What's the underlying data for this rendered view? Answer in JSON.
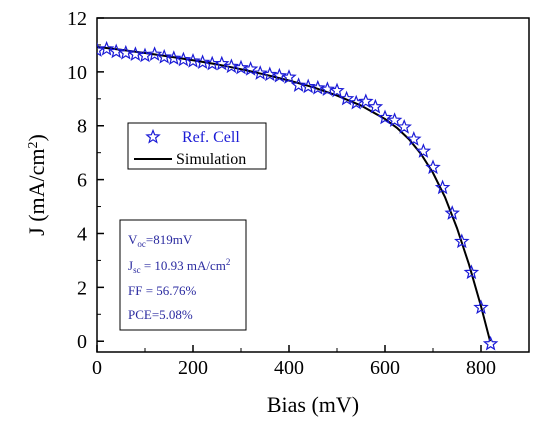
{
  "chart_data": {
    "type": "line",
    "xlabel": "Bias (mV)",
    "ylabel": "J (mA/cm",
    "ylabel_sup": "2",
    "ylabel_tail": ")",
    "xlim": [
      0,
      900
    ],
    "ylim": [
      -0.4,
      12
    ],
    "x_ticks": [
      0,
      200,
      400,
      600,
      800
    ],
    "y_ticks": [
      0,
      2,
      4,
      6,
      8,
      10,
      12
    ],
    "grid": false,
    "legend_position": "left-middle",
    "series": [
      {
        "name": "Ref. Cell",
        "kind": "markers",
        "marker": "star",
        "color": "#1a1ad6",
        "x": [
          0,
          20,
          40,
          60,
          80,
          100,
          120,
          140,
          160,
          180,
          200,
          220,
          240,
          260,
          280,
          300,
          320,
          340,
          360,
          380,
          400,
          420,
          440,
          460,
          480,
          500,
          520,
          540,
          560,
          580,
          600,
          620,
          640,
          660,
          680,
          700,
          720,
          740,
          760,
          780,
          800,
          820
        ],
        "y": [
          10.8,
          10.85,
          10.75,
          10.7,
          10.65,
          10.6,
          10.65,
          10.55,
          10.5,
          10.45,
          10.4,
          10.35,
          10.3,
          10.3,
          10.2,
          10.15,
          10.1,
          9.95,
          9.9,
          9.85,
          9.8,
          9.5,
          9.45,
          9.4,
          9.35,
          9.3,
          9.0,
          8.85,
          8.9,
          8.7,
          8.3,
          8.2,
          7.95,
          7.5,
          7.05,
          6.45,
          5.7,
          4.75,
          3.7,
          2.55,
          1.25,
          -0.1
        ]
      },
      {
        "name": "Simulation",
        "kind": "line",
        "color": "#000000",
        "x": [
          0,
          50,
          100,
          150,
          200,
          250,
          300,
          350,
          400,
          450,
          500,
          550,
          600,
          625,
          650,
          675,
          700,
          725,
          750,
          775,
          800,
          819
        ],
        "y": [
          10.93,
          10.82,
          10.7,
          10.57,
          10.43,
          10.28,
          10.1,
          9.9,
          9.68,
          9.43,
          9.12,
          8.75,
          8.25,
          7.92,
          7.5,
          6.95,
          6.25,
          5.35,
          4.2,
          2.85,
          1.3,
          0.0
        ]
      }
    ],
    "legend": {
      "ref_label": "Ref. Cell",
      "sim_label": "Simulation"
    },
    "info_box": {
      "voc_prefix": "V",
      "voc_sub": "oc",
      "voc_value": "=819mV",
      "jsc_prefix": "J",
      "jsc_sub": "sc",
      "jsc_value": " = 10.93 mA/cm",
      "jsc_sup": "2",
      "ff": "FF = 56.76%",
      "pce": "PCE=5.08%"
    }
  }
}
